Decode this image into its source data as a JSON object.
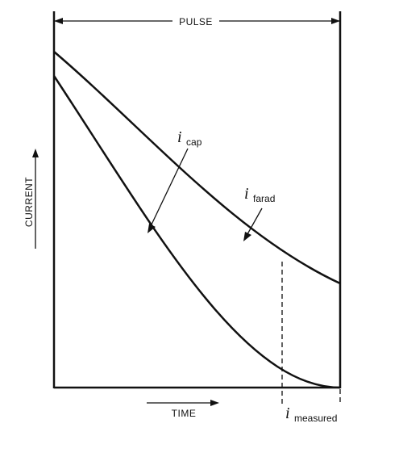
{
  "diagram": {
    "top_label": "PULSE",
    "y_axis_label": "CURRENT",
    "x_axis_label": "TIME",
    "curve_labels": {
      "cap": {
        "main": "i",
        "subscript": "cap"
      },
      "farad": {
        "main": "i",
        "subscript": "farad"
      },
      "measured": {
        "main": "i",
        "subscript": "measured"
      }
    }
  }
}
